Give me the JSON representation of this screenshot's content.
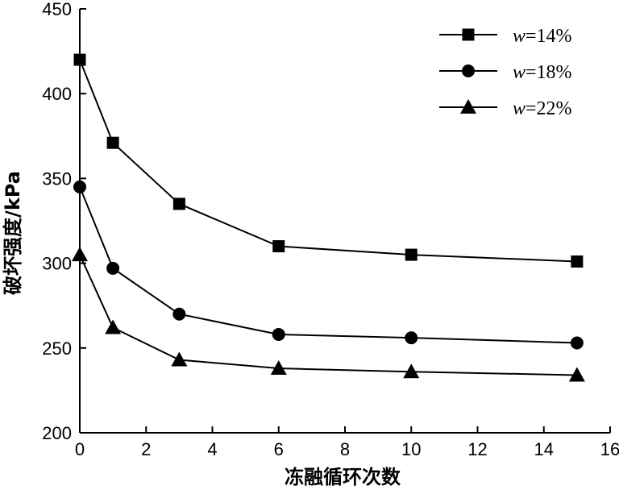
{
  "chart_data": {
    "type": "line",
    "title": "",
    "xlabel": "冻融循环次数",
    "ylabel": "破坏强度/kPa",
    "xlim": [
      0,
      16
    ],
    "ylim": [
      200,
      450
    ],
    "xticks": [
      0,
      2,
      4,
      6,
      8,
      10,
      12,
      14,
      16
    ],
    "yticks": [
      200,
      250,
      300,
      350,
      400,
      450
    ],
    "x": [
      0,
      1,
      3,
      6,
      10,
      15
    ],
    "grid": false,
    "legend_position": "top-right",
    "series": [
      {
        "name_var": "w",
        "name_eq": "=14%",
        "marker": "square",
        "values": [
          420,
          371,
          335,
          310,
          305,
          301
        ]
      },
      {
        "name_var": "w",
        "name_eq": "=18%",
        "marker": "circle",
        "values": [
          345,
          297,
          270,
          258,
          256,
          253
        ]
      },
      {
        "name_var": "w",
        "name_eq": "=22%",
        "marker": "triangle",
        "values": [
          305,
          262,
          243,
          238,
          236,
          234
        ]
      }
    ]
  }
}
